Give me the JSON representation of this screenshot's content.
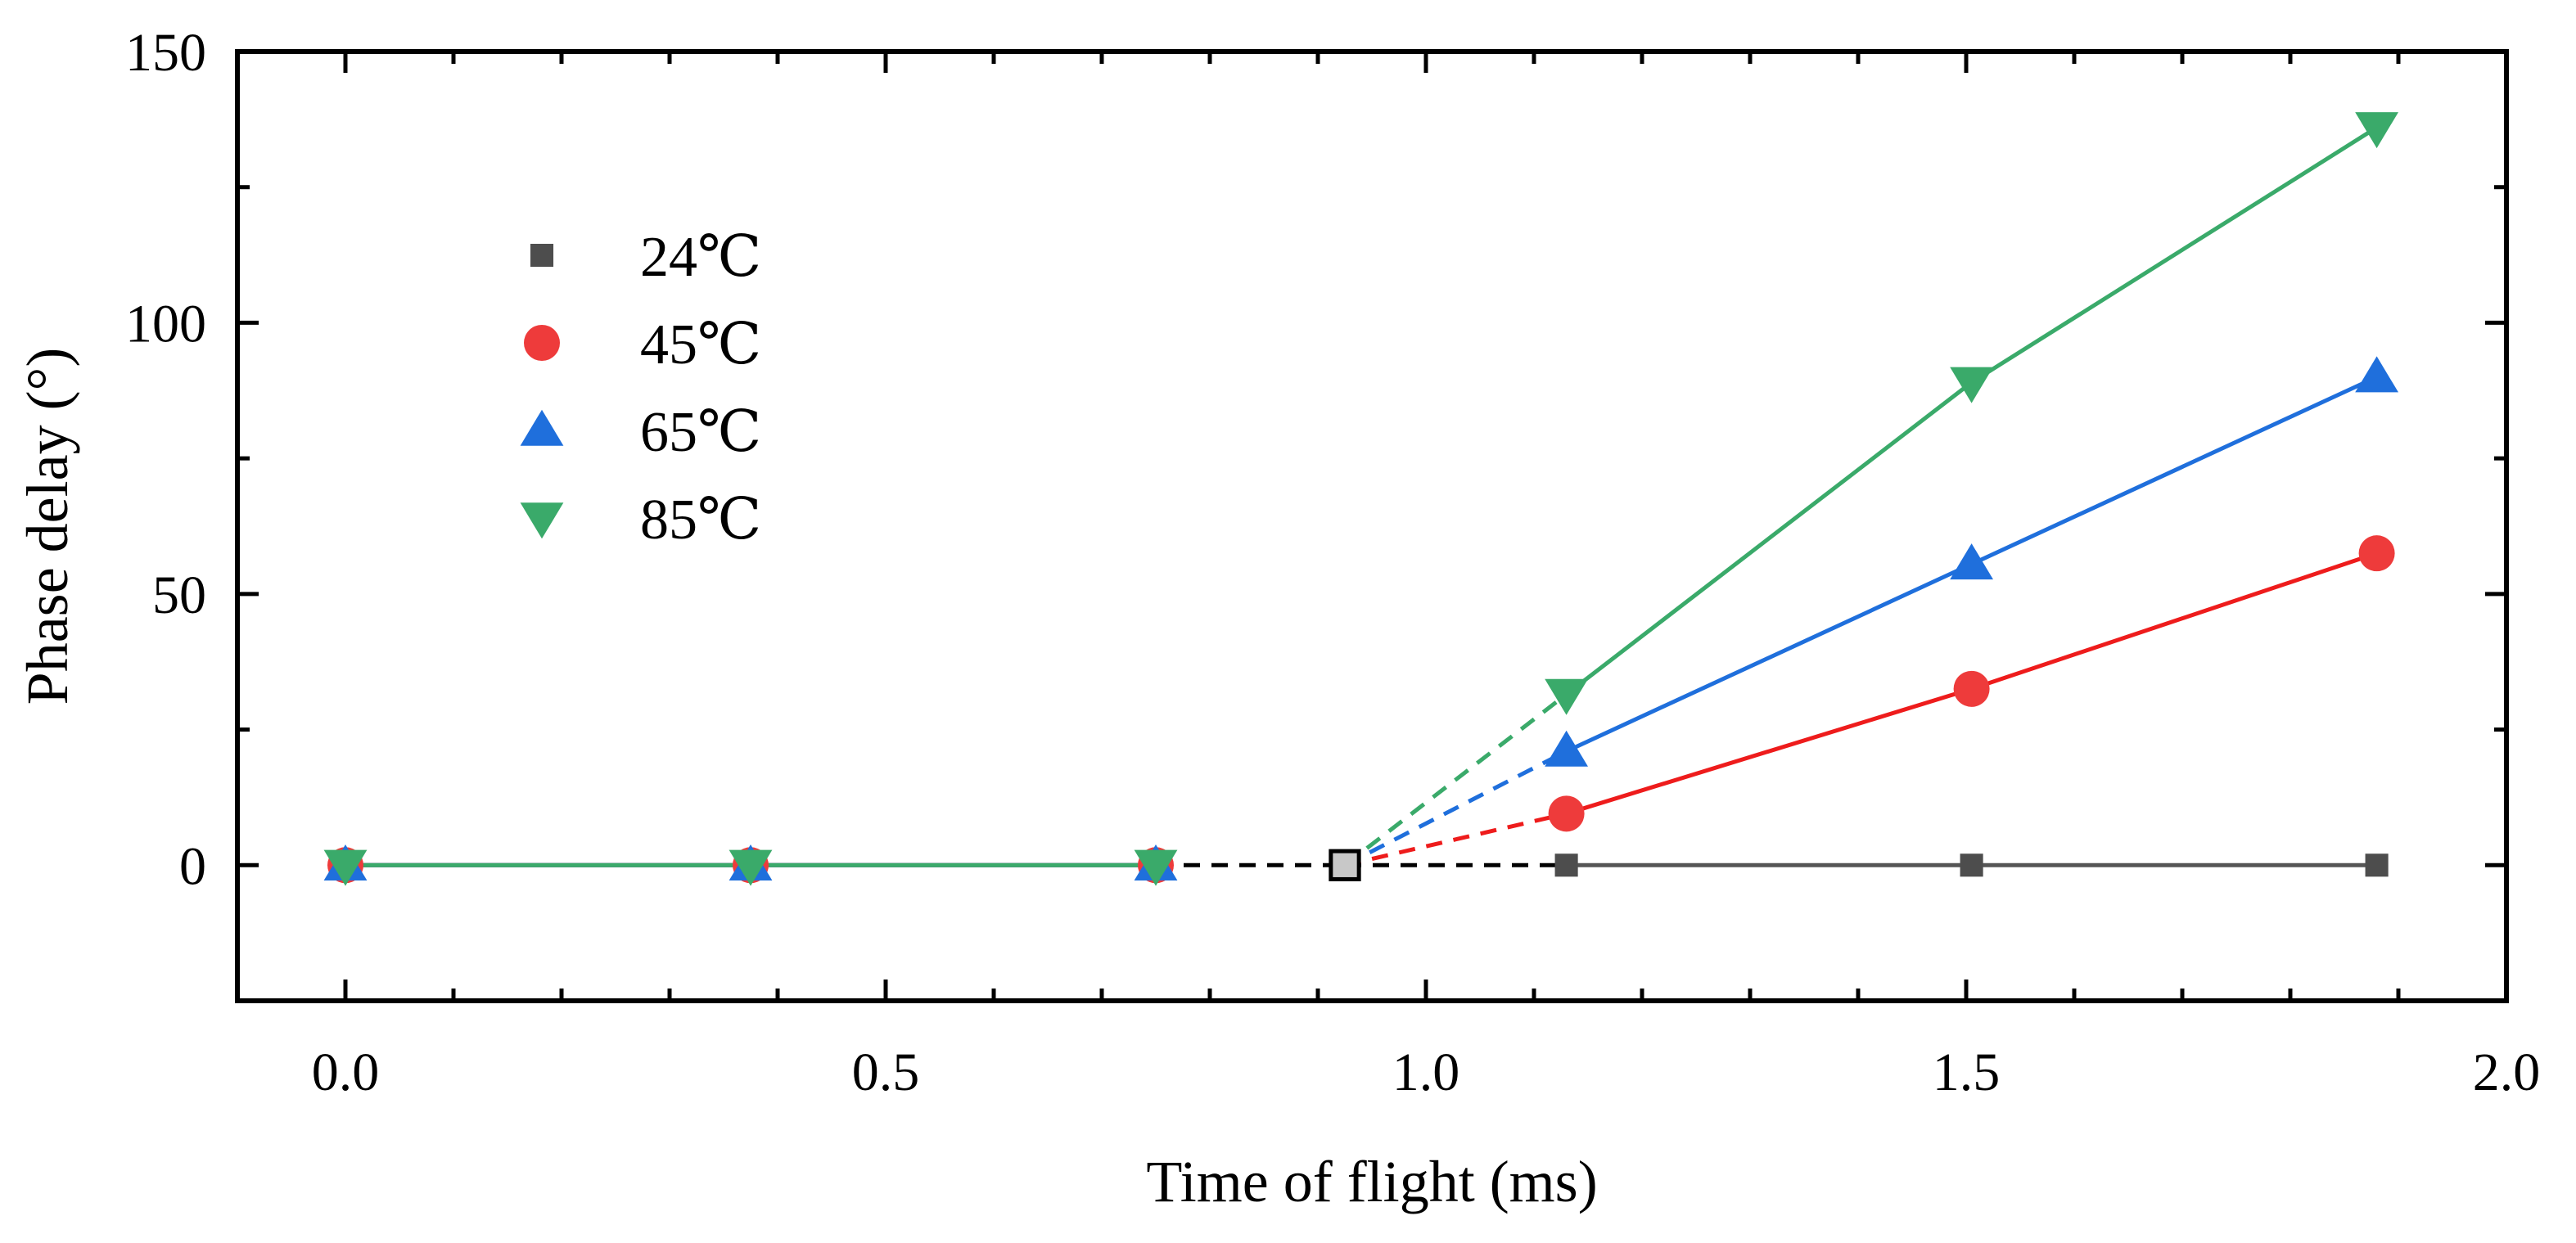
{
  "chart_data": {
    "type": "line",
    "title": "",
    "xlabel": "Time of flight (ms)",
    "ylabel": "Phase delay (°)",
    "xlim": [
      -0.1,
      2.0
    ],
    "ylim": [
      -25,
      150
    ],
    "xticks": [
      0.0,
      0.5,
      1.0,
      1.5,
      2.0
    ],
    "xtick_labels": [
      "0.0",
      "0.5",
      "1.0",
      "1.5",
      "2.0"
    ],
    "yticks": [
      0,
      50,
      100,
      150
    ],
    "ytick_labels": [
      "0",
      "50",
      "100",
      "150"
    ],
    "legend_position": "upper-left",
    "onset_point": {
      "x": 0.925,
      "y": 0,
      "marker": "square",
      "color": "#c8c8c8"
    },
    "series": [
      {
        "name": "24℃",
        "color": "#4d4d4d",
        "line_color": "#555555",
        "marker": "square",
        "x": [
          0.0,
          0.375,
          0.75,
          1.13,
          1.505,
          1.88
        ],
        "y": [
          0,
          0,
          0,
          0,
          0,
          0
        ]
      },
      {
        "name": "45℃",
        "color": "#ee3b3b",
        "line_color": "#ee1c1c",
        "marker": "circle",
        "x": [
          0.0,
          0.375,
          0.75,
          1.13,
          1.505,
          1.88
        ],
        "y": [
          0,
          0,
          0,
          9.5,
          32.5,
          57.5
        ]
      },
      {
        "name": "65℃",
        "color": "#1f6fdc",
        "line_color": "#1f6fdc",
        "marker": "triangle-up",
        "x": [
          0.0,
          0.375,
          0.75,
          1.13,
          1.505,
          1.88
        ],
        "y": [
          0,
          0,
          0,
          21,
          55.5,
          90
        ]
      },
      {
        "name": "85℃",
        "color": "#3aaa6a",
        "line_color": "#3aaa6a",
        "marker": "triangle-down",
        "x": [
          0.0,
          0.375,
          0.75,
          1.13,
          1.505,
          1.88
        ],
        "y": [
          0,
          0,
          0,
          31.5,
          89,
          136
        ]
      }
    ]
  }
}
